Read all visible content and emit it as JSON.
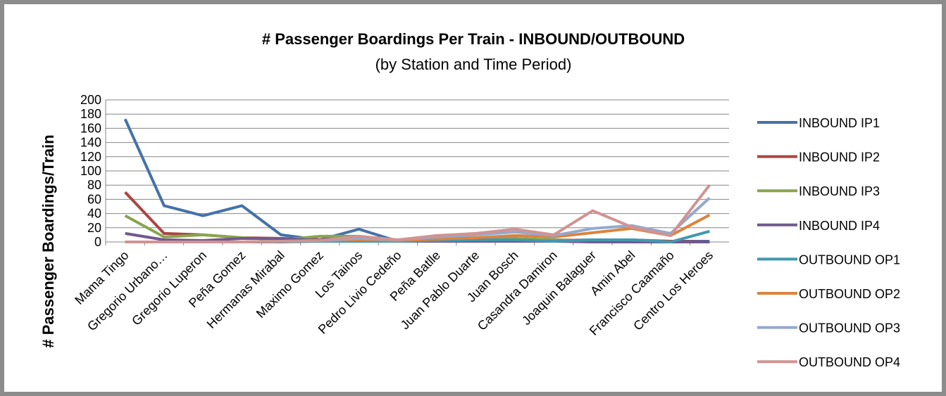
{
  "chart_data": {
    "type": "line",
    "title": "# Passenger Boardings Per Train - INBOUND/OUTBOUND",
    "subtitle": "(by Station and Time Period)",
    "y_label": "# Passenger Boardings/Train",
    "categories": [
      "Mama Tingo",
      "Gregorio Urbano…",
      "Gregorio Luperon",
      "Peña Gomez",
      "Hermanas Mirabal",
      "Maximo Gomez",
      "Los Tainos",
      "Pedro Livio Cedeño",
      "Peña Batlle",
      "Juan Pablo Duarte",
      "Juan Bosch",
      "Casandra Damiron",
      "Joaquin Balaguer",
      "Amin Abel",
      "Francisco Caamaño",
      "Centro Los Heroes"
    ],
    "series": [
      {
        "name": "INBOUND IP1",
        "color": "#4572a7",
        "values": [
          173,
          51,
          37,
          51,
          10,
          3,
          18,
          1,
          3,
          5,
          4,
          2,
          3,
          3,
          1,
          1
        ]
      },
      {
        "name": "INBOUND IP2",
        "color": "#aa4643",
        "values": [
          70,
          12,
          10,
          6,
          5,
          3,
          5,
          2,
          2,
          3,
          4,
          3,
          2,
          2,
          1,
          0
        ]
      },
      {
        "name": "INBOUND IP3",
        "color": "#89a54e",
        "values": [
          37,
          7,
          10,
          6,
          3,
          8,
          8,
          2,
          3,
          4,
          5,
          3,
          1,
          1,
          0,
          0
        ]
      },
      {
        "name": "INBOUND IP4",
        "color": "#71588f",
        "values": [
          12,
          3,
          2,
          5,
          5,
          2,
          3,
          1,
          1,
          1,
          1,
          1,
          0,
          0,
          0,
          0
        ]
      },
      {
        "name": "OUTBOUND OP1",
        "color": "#4198af",
        "values": [
          0,
          0,
          0,
          0,
          0,
          1,
          1,
          1,
          2,
          3,
          3,
          1,
          3,
          3,
          0,
          15
        ]
      },
      {
        "name": "OUTBOUND OP2",
        "color": "#db843d",
        "values": [
          0,
          0,
          0,
          0,
          1,
          2,
          3,
          2,
          4,
          6,
          9,
          7,
          13,
          19,
          9,
          38
        ]
      },
      {
        "name": "OUTBOUND OP3",
        "color": "#93a9cf",
        "values": [
          0,
          0,
          0,
          0,
          1,
          2,
          5,
          3,
          7,
          10,
          14,
          9,
          19,
          23,
          12,
          62
        ]
      },
      {
        "name": "OUTBOUND OP4",
        "color": "#d19392",
        "values": [
          0,
          0,
          0,
          0,
          1,
          2,
          8,
          3,
          9,
          12,
          18,
          10,
          44,
          21,
          9,
          80
        ]
      }
    ],
    "ylim": [
      0,
      200
    ],
    "yticks": [
      0,
      20,
      40,
      60,
      80,
      100,
      120,
      140,
      160,
      180,
      200
    ],
    "grid": true,
    "legend": "right"
  }
}
